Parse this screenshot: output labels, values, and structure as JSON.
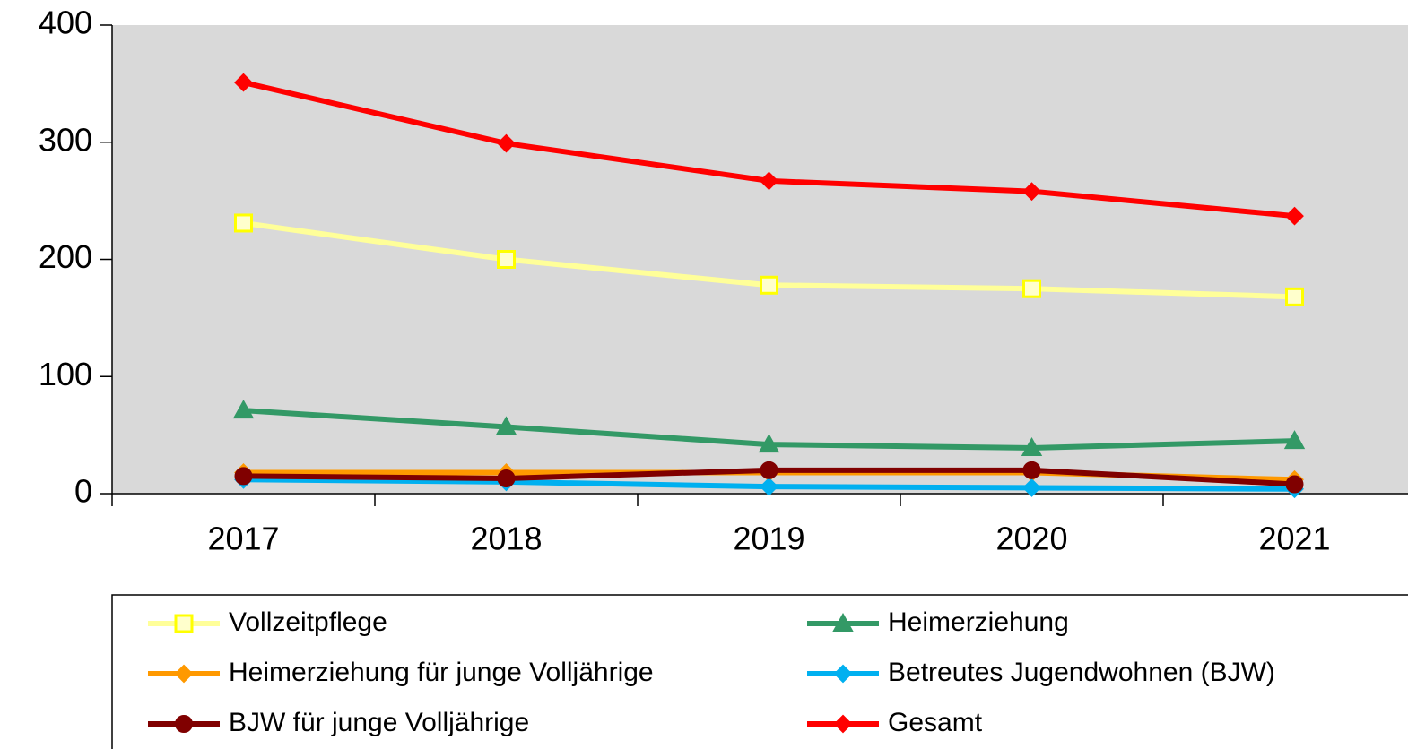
{
  "chart_data": {
    "type": "line",
    "categories": [
      "2017",
      "2018",
      "2019",
      "2020",
      "2021"
    ],
    "series": [
      {
        "name": "Vollzeitpflege",
        "color": "#ffff99",
        "marker": "square",
        "marker_color": "#ffff00",
        "values": [
          231,
          200,
          178,
          175,
          168
        ]
      },
      {
        "name": "Heimerziehung",
        "color": "#339966",
        "marker": "triangle",
        "marker_color": "#339966",
        "values": [
          71,
          57,
          42,
          39,
          45
        ]
      },
      {
        "name": "Heimerziehung für junge Volljährige",
        "color": "#ff9900",
        "marker": "diamond",
        "marker_color": "#ff9900",
        "values": [
          18,
          18,
          18,
          18,
          12
        ]
      },
      {
        "name": "Betreutes Jugendwohnen (BJW)",
        "color": "#00b0f0",
        "marker": "diamond",
        "marker_color": "#00b0f0",
        "values": [
          12,
          10,
          6,
          5,
          4
        ]
      },
      {
        "name": "BJW für junge Volljährige",
        "color": "#800000",
        "marker": "circle",
        "marker_color": "#800000",
        "values": [
          15,
          13,
          20,
          20,
          8
        ]
      },
      {
        "name": "Gesamt",
        "color": "#ff0000",
        "marker": "diamond",
        "marker_color": "#ff0000",
        "values": [
          351,
          299,
          267,
          258,
          237
        ]
      }
    ],
    "ylim": [
      0,
      400
    ],
    "yticks": [
      0,
      100,
      200,
      300,
      400
    ],
    "plot_background": "#d9d9d9",
    "legend": "bottom"
  }
}
